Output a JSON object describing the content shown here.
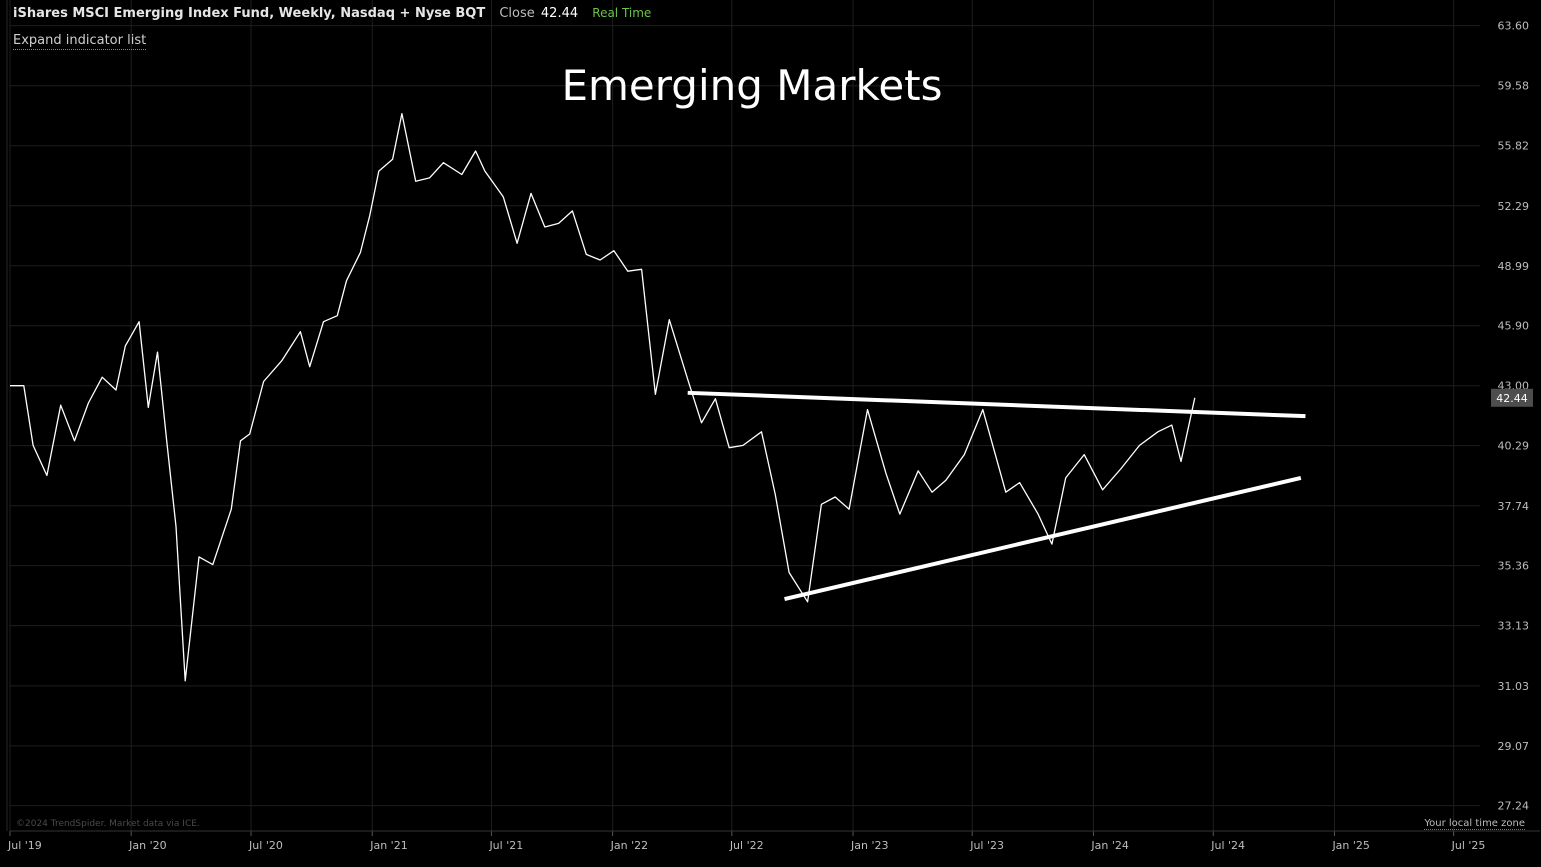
{
  "header": {
    "symbol_line": "iShares MSCI Emerging Index Fund, Weekly, Nasdaq + Nyse BQT",
    "close_label": "Close",
    "close_value": "42.44",
    "realtime_label": "Real Time",
    "expand_indicators": "Expand indicator list"
  },
  "footer": {
    "watermark": "©2024 TrendSpider. Market data via ICE.",
    "timezone_label": "Your local time zone"
  },
  "colors": {
    "background": "#000000",
    "grid": "#1e1e1e",
    "price_line": "#ffffff",
    "trendline": "#ffffff",
    "axis_text": "#bdbdbd",
    "realtime": "#6cc24a",
    "last_price_badge": "#4d4d4d"
  },
  "chart_data": {
    "type": "line",
    "title": "Emerging Markets",
    "y_scale": "log",
    "ylim": [
      26.5,
      65.4
    ],
    "xlim": [
      "2019-07-01",
      "2025-08-10"
    ],
    "y_ticks": [
      "63.60",
      "59.58",
      "55.82",
      "52.29",
      "48.99",
      "45.90",
      "43.00",
      "40.29",
      "37.74",
      "35.36",
      "33.13",
      "31.03",
      "29.07",
      "27.24"
    ],
    "x_ticks": [
      {
        "label": "Jul '19",
        "date": "2019-07-01"
      },
      {
        "label": "Jan '20",
        "date": "2020-01-01"
      },
      {
        "label": "Jul '20",
        "date": "2020-07-01"
      },
      {
        "label": "Jan '21",
        "date": "2021-01-01"
      },
      {
        "label": "Jul '21",
        "date": "2021-07-01"
      },
      {
        "label": "Jan '22",
        "date": "2022-01-01"
      },
      {
        "label": "Jul '22",
        "date": "2022-07-01"
      },
      {
        "label": "Jan '23",
        "date": "2023-01-01"
      },
      {
        "label": "Jul '23",
        "date": "2023-07-01"
      },
      {
        "label": "Jan '24",
        "date": "2024-01-01"
      },
      {
        "label": "Jul '24",
        "date": "2024-07-01"
      },
      {
        "label": "Jan '25",
        "date": "2025-01-01"
      },
      {
        "label": "Jul '25",
        "date": "2025-07-01"
      }
    ],
    "last_price": "42.44",
    "grid": true,
    "series": [
      {
        "points": [
          [
            "2019-07-01",
            43.0
          ],
          [
            "2019-07-22",
            43.0
          ],
          [
            "2019-08-05",
            40.3
          ],
          [
            "2019-08-26",
            39.0
          ],
          [
            "2019-09-16",
            42.1
          ],
          [
            "2019-10-07",
            40.5
          ],
          [
            "2019-10-28",
            42.2
          ],
          [
            "2019-11-18",
            43.4
          ],
          [
            "2019-12-09",
            42.8
          ],
          [
            "2019-12-23",
            44.9
          ],
          [
            "2020-01-13",
            46.1
          ],
          [
            "2020-01-27",
            42.0
          ],
          [
            "2020-02-10",
            44.6
          ],
          [
            "2020-02-24",
            40.5
          ],
          [
            "2020-03-09",
            36.9
          ],
          [
            "2020-03-23",
            31.2
          ],
          [
            "2020-04-13",
            35.7
          ],
          [
            "2020-05-04",
            35.4
          ],
          [
            "2020-06-01",
            37.6
          ],
          [
            "2020-06-15",
            40.5
          ],
          [
            "2020-06-29",
            40.8
          ],
          [
            "2020-07-20",
            43.2
          ],
          [
            "2020-08-17",
            44.2
          ],
          [
            "2020-09-14",
            45.6
          ],
          [
            "2020-09-28",
            43.9
          ],
          [
            "2020-10-19",
            46.1
          ],
          [
            "2020-11-09",
            46.4
          ],
          [
            "2020-11-23",
            48.2
          ],
          [
            "2020-12-14",
            49.7
          ],
          [
            "2020-12-28",
            51.7
          ],
          [
            "2021-01-11",
            54.3
          ],
          [
            "2021-02-01",
            55.0
          ],
          [
            "2021-02-15",
            57.8
          ],
          [
            "2021-03-08",
            53.7
          ],
          [
            "2021-03-29",
            53.9
          ],
          [
            "2021-04-19",
            54.8
          ],
          [
            "2021-05-17",
            54.1
          ],
          [
            "2021-06-07",
            55.5
          ],
          [
            "2021-06-21",
            54.3
          ],
          [
            "2021-07-19",
            52.8
          ],
          [
            "2021-08-09",
            50.2
          ],
          [
            "2021-08-30",
            53.0
          ],
          [
            "2021-09-20",
            51.1
          ],
          [
            "2021-10-11",
            51.3
          ],
          [
            "2021-11-01",
            52.0
          ],
          [
            "2021-11-22",
            49.6
          ],
          [
            "2021-12-13",
            49.3
          ],
          [
            "2022-01-03",
            49.8
          ],
          [
            "2022-01-24",
            48.7
          ],
          [
            "2022-02-14",
            48.8
          ],
          [
            "2022-03-07",
            42.6
          ],
          [
            "2022-03-28",
            46.2
          ],
          [
            "2022-04-25",
            43.3
          ],
          [
            "2022-05-16",
            41.3
          ],
          [
            "2022-06-06",
            42.4
          ],
          [
            "2022-06-27",
            40.2
          ],
          [
            "2022-07-18",
            40.3
          ],
          [
            "2022-08-15",
            40.9
          ],
          [
            "2022-09-05",
            38.2
          ],
          [
            "2022-09-26",
            35.1
          ],
          [
            "2022-10-24",
            34.0
          ],
          [
            "2022-11-14",
            37.8
          ],
          [
            "2022-12-05",
            38.1
          ],
          [
            "2022-12-26",
            37.6
          ],
          [
            "2023-01-23",
            41.9
          ],
          [
            "2023-02-20",
            39.1
          ],
          [
            "2023-03-13",
            37.4
          ],
          [
            "2023-04-10",
            39.2
          ],
          [
            "2023-05-01",
            38.3
          ],
          [
            "2023-05-22",
            38.8
          ],
          [
            "2023-06-19",
            39.9
          ],
          [
            "2023-07-17",
            41.9
          ],
          [
            "2023-08-21",
            38.3
          ],
          [
            "2023-09-11",
            38.7
          ],
          [
            "2023-10-09",
            37.4
          ],
          [
            "2023-10-30",
            36.2
          ],
          [
            "2023-11-20",
            38.9
          ],
          [
            "2023-12-18",
            39.9
          ],
          [
            "2024-01-15",
            38.4
          ],
          [
            "2024-02-12",
            39.3
          ],
          [
            "2024-03-11",
            40.3
          ],
          [
            "2024-04-08",
            40.9
          ],
          [
            "2024-04-29",
            41.2
          ],
          [
            "2024-05-13",
            39.6
          ],
          [
            "2024-06-03",
            42.44
          ]
        ]
      }
    ],
    "trendlines": [
      {
        "from": [
          "2022-04-25",
          42.67
        ],
        "to": [
          "2024-11-18",
          41.6
        ]
      },
      {
        "from": [
          "2022-09-19",
          34.1
        ],
        "to": [
          "2024-11-11",
          38.9
        ]
      }
    ]
  }
}
